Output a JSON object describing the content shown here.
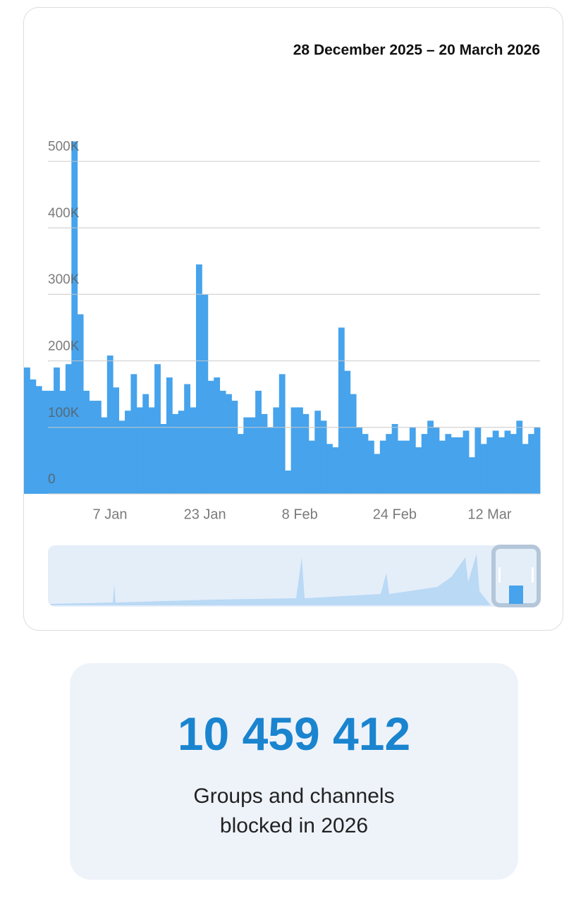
{
  "chart_data": {
    "type": "bar",
    "title": "28 December 2025 – 20 March 2026",
    "categories": [
      null,
      null,
      null,
      null,
      null,
      null,
      null,
      null,
      null,
      null,
      null,
      null,
      null,
      null,
      "7 Jan",
      null,
      null,
      null,
      null,
      null,
      null,
      null,
      null,
      null,
      null,
      null,
      null,
      null,
      null,
      null,
      "23 Jan",
      null,
      null,
      null,
      null,
      null,
      null,
      null,
      null,
      null,
      null,
      null,
      null,
      null,
      null,
      null,
      "8 Feb",
      null,
      null,
      null,
      null,
      null,
      null,
      null,
      null,
      null,
      null,
      null,
      null,
      null,
      null,
      null,
      "24 Feb",
      null,
      null,
      null,
      null,
      null,
      null,
      null,
      null,
      null,
      null,
      null,
      null,
      null,
      null,
      null,
      "12 Mar",
      null,
      null,
      null,
      null,
      null,
      null,
      null,
      null
    ],
    "values": [
      190000,
      172000,
      162000,
      155000,
      155000,
      190000,
      155000,
      195000,
      530000,
      270000,
      155000,
      140000,
      140000,
      115000,
      208000,
      160000,
      110000,
      125000,
      180000,
      130000,
      150000,
      130000,
      195000,
      105000,
      175000,
      120000,
      125000,
      165000,
      130000,
      345000,
      300000,
      170000,
      175000,
      155000,
      150000,
      140000,
      90000,
      115000,
      115000,
      155000,
      120000,
      100000,
      130000,
      180000,
      35000,
      130000,
      130000,
      120000,
      80000,
      125000,
      110000,
      75000,
      70000,
      250000,
      185000,
      150000,
      100000,
      90000,
      80000,
      60000,
      80000,
      90000,
      105000,
      80000,
      80000,
      100000,
      70000,
      90000,
      110000,
      100000,
      80000,
      90000,
      85000,
      85000,
      95000,
      55000,
      100000,
      75000,
      85000,
      95000,
      85000,
      95000,
      90000,
      110000,
      75000,
      90000,
      100000
    ],
    "color": "#46a3ec",
    "ylim": [
      0,
      540000
    ],
    "yticks": [
      0,
      {
        "value": 100000,
        "label": "100K"
      },
      {
        "value": 200000,
        "label": "200K"
      },
      {
        "value": 300000,
        "label": "300K"
      },
      {
        "value": 400000,
        "label": "400K"
      },
      {
        "value": 500000,
        "label": "500K"
      }
    ],
    "grid": true
  },
  "summary": {
    "total": "10 459 412",
    "caption": "Groups and channels blocked in 2026"
  }
}
